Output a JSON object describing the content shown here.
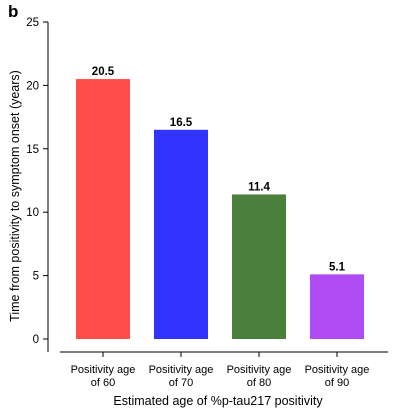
{
  "panel_label": "b",
  "chart_data": {
    "type": "bar",
    "categories": [
      [
        "Positivity age",
        "of 60"
      ],
      [
        "Positivity age",
        "of 70"
      ],
      [
        "Positivity age",
        "of 80"
      ],
      [
        "Positivity age",
        "of 90"
      ]
    ],
    "values": [
      20.5,
      16.5,
      11.4,
      5.1
    ],
    "value_labels": [
      "20.5",
      "16.5",
      "11.4",
      "5.1"
    ],
    "colors": [
      "#ff4d4a",
      "#3333ff",
      "#4a7f3c",
      "#b04cf4"
    ],
    "xlabel": "Estimated age of %p-tau217 positivity",
    "ylabel": "Time from positivity to symptom onset (years)",
    "ylim": [
      0,
      25
    ],
    "yticks": [
      0,
      5,
      10,
      15,
      20,
      25
    ],
    "grid": false,
    "legend": "none"
  }
}
